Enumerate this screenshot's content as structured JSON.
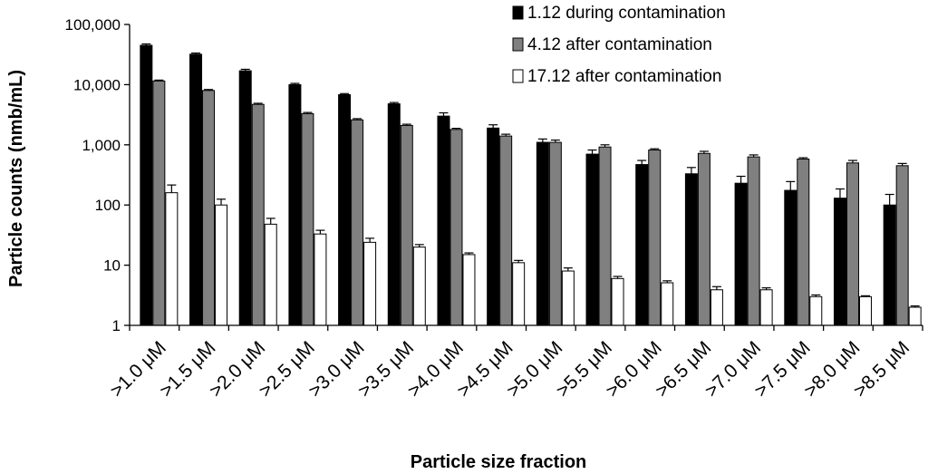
{
  "chart_data": {
    "type": "bar",
    "y_scale": "log",
    "ylim": [
      1,
      100000
    ],
    "yticks": [
      1,
      10,
      100,
      1000,
      10000,
      100000
    ],
    "ytick_labels": [
      "1",
      "10",
      "100",
      "1,000",
      "10,000",
      "100,000"
    ],
    "xlabel": "Particle size fraction",
    "ylabel": "Particle counts (nmb/mL)",
    "legend_position": "top-right",
    "grid": false,
    "categories": [
      ">1.0 μM",
      ">1.5 μM",
      ">2.0 μM",
      ">2.5 μM",
      ">3.0 μM",
      ">3.5 μM",
      ">4.0 μM",
      ">4.5 μM",
      ">5.0 μM",
      ">5.5 μM",
      ">6.0 μM",
      ">6.5 μM",
      ">7.0 μM",
      ">7.5 μM",
      ">8.0 μM",
      ">8.5 μM"
    ],
    "series": [
      {
        "name": "1.12 during contamination",
        "color": "#000000",
        "values": [
          45000,
          32000,
          17000,
          10000,
          6800,
          4800,
          3000,
          1900,
          1100,
          700,
          470,
          330,
          230,
          175,
          130,
          100
        ],
        "errors": [
          2500,
          1500,
          1000,
          500,
          300,
          250,
          400,
          250,
          150,
          120,
          80,
          90,
          70,
          70,
          55,
          50
        ]
      },
      {
        "name": "4.12 after contamination",
        "color": "#808080",
        "values": [
          11500,
          8000,
          4700,
          3300,
          2600,
          2100,
          1800,
          1400,
          1100,
          920,
          820,
          720,
          630,
          580,
          500,
          450
        ],
        "errors": [
          400,
          300,
          200,
          150,
          120,
          100,
          80,
          100,
          100,
          80,
          40,
          60,
          50,
          30,
          50,
          40
        ]
      },
      {
        "name": "17.12 after contamination",
        "color": "#ffffff",
        "values": [
          160,
          100,
          48,
          33,
          24,
          20,
          15,
          11,
          8,
          6,
          5.1,
          3.9,
          3.9,
          3.0,
          3.0,
          2.0
        ],
        "errors": [
          55,
          25,
          12,
          5,
          4,
          2,
          1,
          1,
          1,
          0.5,
          0.4,
          0.5,
          0.3,
          0.2,
          0.1,
          0.1
        ]
      }
    ]
  }
}
